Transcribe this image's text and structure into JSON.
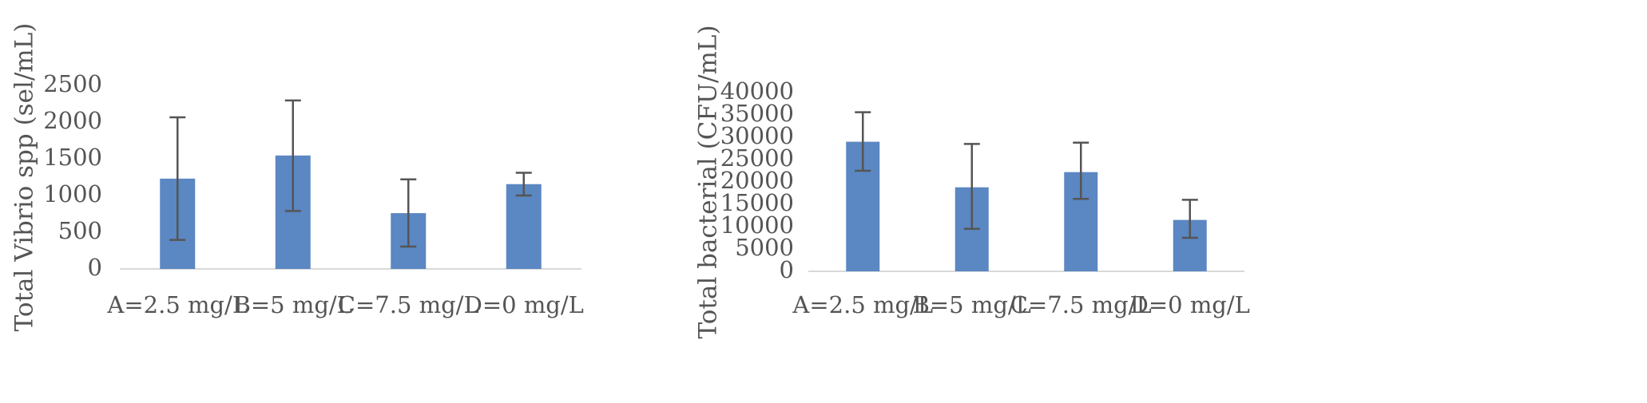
{
  "chart_data": [
    {
      "type": "bar",
      "title": "",
      "xlabel": "",
      "ylabel": "Total Vibrio spp (sel/mL)",
      "categories": [
        "A=2.5 mg/L",
        "B=5 mg/L",
        "C=7.5 mg/L",
        "D=0 mg/L"
      ],
      "series": [
        {
          "values": [
            1230,
            1545,
            760,
            1155
          ],
          "error_low": [
            395,
            790,
            305,
            1000
          ],
          "error_high": [
            2065,
            2295,
            1220,
            1310
          ]
        }
      ],
      "ylim": [
        0,
        2500
      ],
      "yticks": [
        0,
        500,
        1000,
        1500,
        2000,
        2500
      ],
      "grid": false,
      "legend": "none",
      "colors": {
        "bar": "#5B87C2",
        "error": "#555555",
        "axis": "#D9D9D9",
        "text": "#555555"
      }
    },
    {
      "type": "bar",
      "title": "",
      "xlabel": "",
      "ylabel": "Total bacterial (CFU/mL)",
      "categories": [
        "A=2.5 mg/L",
        "B=5 mg/L",
        "C=7.5 mg/L",
        "D=0 mg/L"
      ],
      "series": [
        {
          "values": [
            29000,
            18800,
            22200,
            11500
          ],
          "error_low": [
            22500,
            9500,
            16200,
            7500
          ],
          "error_high": [
            35600,
            28500,
            28800,
            16000
          ]
        }
      ],
      "ylim": [
        0,
        40000
      ],
      "yticks": [
        0,
        5000,
        10000,
        15000,
        20000,
        25000,
        30000,
        35000,
        40000
      ],
      "grid": false,
      "legend": "none",
      "colors": {
        "bar": "#5B87C2",
        "error": "#555555",
        "axis": "#D9D9D9",
        "text": "#555555"
      }
    }
  ]
}
